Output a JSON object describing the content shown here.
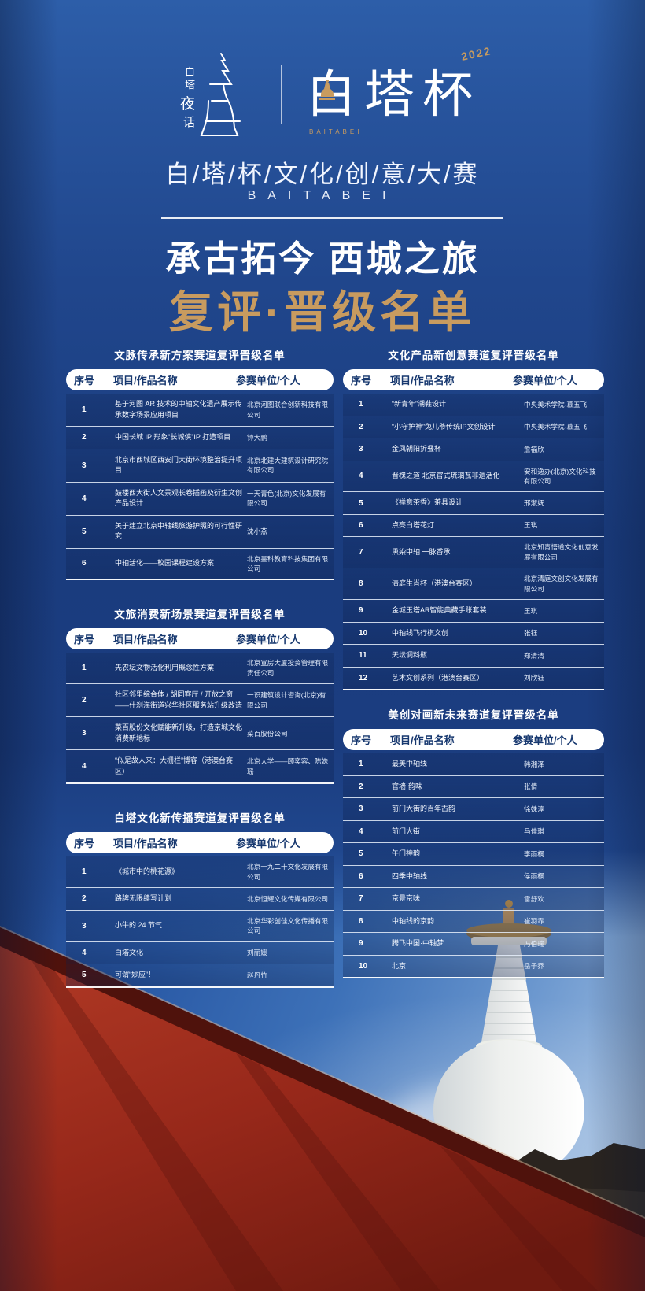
{
  "header": {
    "left_logo_text": "白塔夜话",
    "right_logo_text": "白塔杯",
    "right_logo_year": "2022",
    "right_logo_sub": "BAITABEI",
    "title": "白/塔/杯/文/化/创/意/大/赛",
    "title_latin": "BAITABEI",
    "slogan": "承古拓今 西城之旅",
    "list_title": "复评·晋级名单"
  },
  "columns": [
    "序号",
    "项目/作品名称",
    "参赛单位/个人"
  ],
  "tables": [
    {
      "title": "文脉传承新方案赛道复评晋级名单",
      "rows": [
        {
          "no": "1",
          "project": "基于河图 AR 技术的中轴文化遗产展示传承数字场景应用项目",
          "unit": "北京河图联合创新科技有限公司"
        },
        {
          "no": "2",
          "project": "中国长城 IP 形象“长城侠”IP 打造项目",
          "unit": "钟大鹏"
        },
        {
          "no": "3",
          "project": "北京市西城区西安门大街环境整治提升项目",
          "unit": "北京北建大建筑设计研究院有限公司"
        },
        {
          "no": "4",
          "project": "鼓楼西大街人文景观长卷插画及衍生文创产品设计",
          "unit": "一天青色(北京)文化发展有限公司"
        },
        {
          "no": "5",
          "project": "关于建立北京中轴线旅游护照的可行性研究",
          "unit": "沈小燕"
        },
        {
          "no": "6",
          "project": "中轴活化——校园课程建设方案",
          "unit": "北京墨科教育科技集团有限公司"
        }
      ]
    },
    {
      "title": "文旅消费新场景赛道复评晋级名单",
      "rows": [
        {
          "no": "1",
          "project": "先农坛文物活化利用概念性方案",
          "unit": "北京宣房大厦投资管理有限责任公司"
        },
        {
          "no": "2",
          "project": "社区邻里综合体 / 胡同客厅 / 开放之窗——什刹海街道兴华社区服务站升级改造",
          "unit": "一识建筑设计咨询(北京)有限公司"
        },
        {
          "no": "3",
          "project": "菜百股份文化赋能新升级，打造京城文化消费新地标",
          "unit": "菜百股份公司"
        },
        {
          "no": "4",
          "project": "“似是故人来：大栅栏”博客（港澳台赛区）",
          "unit": "北京大学——顾奕容、陈姝瑶"
        }
      ]
    },
    {
      "title": "白塔文化新传播赛道复评晋级名单",
      "rows": [
        {
          "no": "1",
          "project": "《城市中的桃花源》",
          "unit": "北京十九二十文化发展有限公司"
        },
        {
          "no": "2",
          "project": "路牌无限续写计划",
          "unit": "北京恒耀文化传媒有限公司"
        },
        {
          "no": "3",
          "project": "小牛的 24 节气",
          "unit": "北京华彩创佳文化传播有限公司"
        },
        {
          "no": "4",
          "project": "白塔文化",
          "unit": "刘丽媛"
        },
        {
          "no": "5",
          "project": "可谓“妙应”！",
          "unit": "赵丹竹"
        }
      ]
    },
    {
      "title": "文化产品新创意赛道复评晋级名单",
      "rows": [
        {
          "no": "1",
          "project": "“新青年”潮鞋设计",
          "unit": "中央美术学院-慕五飞"
        },
        {
          "no": "2",
          "project": "“小守护神”兔儿爷传统IP文创设计",
          "unit": "中央美术学院-慕五飞"
        },
        {
          "no": "3",
          "project": "金凤朝阳折叠杯",
          "unit": "詹福欣"
        },
        {
          "no": "4",
          "project": "晋槐之道 北京官式琉璃瓦非遗活化",
          "unit": "安和逸办(北京)文化科技有限公司"
        },
        {
          "no": "5",
          "project": "《禅意茶香》茶具设计",
          "unit": "邢淑妩"
        },
        {
          "no": "6",
          "project": "点亮白塔花灯",
          "unit": "王琪"
        },
        {
          "no": "7",
          "project": "熏染中轴 一脉香承",
          "unit": "北京知青悟道文化创意发展有限公司"
        },
        {
          "no": "8",
          "project": "清庭生肖杯（港澳台赛区）",
          "unit": "北京清庭文创文化发展有限公司"
        },
        {
          "no": "9",
          "project": "金城玉塔AR智能典藏手账套装",
          "unit": "王琪"
        },
        {
          "no": "10",
          "project": "中轴线飞行棋文创",
          "unit": "张钰"
        },
        {
          "no": "11",
          "project": "天坛调料瓶",
          "unit": "郑清清"
        },
        {
          "no": "12",
          "project": "艺术文创系列（港澳台赛区）",
          "unit": "刘欣钰"
        }
      ]
    },
    {
      "title": "美创对画新未来赛道复评晋级名单",
      "rows": [
        {
          "no": "1",
          "project": "最美中轴线",
          "unit": "韩湘泽"
        },
        {
          "no": "2",
          "project": "官墙·韵味",
          "unit": "张倩"
        },
        {
          "no": "3",
          "project": "前门大街的百年古韵",
          "unit": "徐姝淳"
        },
        {
          "no": "4",
          "project": "前门大街",
          "unit": "马佳琪"
        },
        {
          "no": "5",
          "project": "午门神韵",
          "unit": "李雨桐"
        },
        {
          "no": "6",
          "project": "四季中轴线",
          "unit": "侯雨桐"
        },
        {
          "no": "7",
          "project": "京景京味",
          "unit": "雷舒欢"
        },
        {
          "no": "8",
          "project": "中轴线的京韵",
          "unit": "崔羽霏"
        },
        {
          "no": "9",
          "project": "腾飞中国·中轴梦",
          "unit": "冯伯瑞"
        },
        {
          "no": "10",
          "project": "北京",
          "unit": "岳子乔"
        }
      ]
    }
  ],
  "colors": {
    "poster_blue": "#1e4489",
    "gold": "#c89b5f",
    "wall_red": "#9c2a1b",
    "sky_blue": "#3d71b8"
  }
}
